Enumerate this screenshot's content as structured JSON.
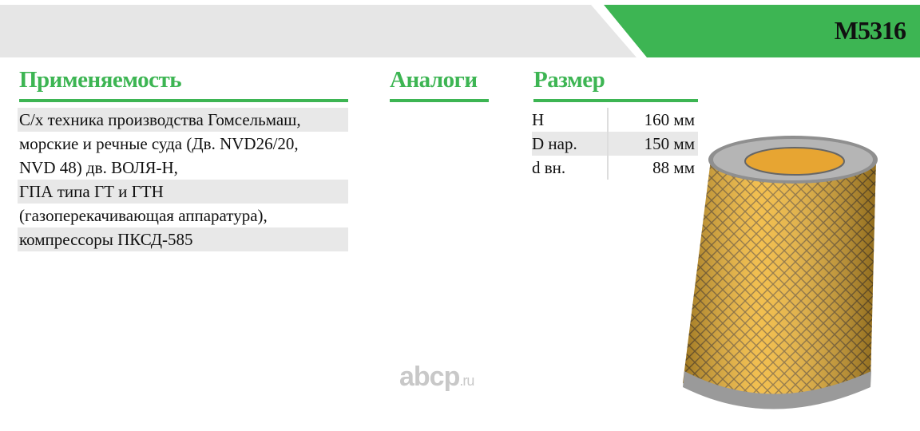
{
  "header": {
    "code": "M5316",
    "accent": "#3db553",
    "bar_gray": "#e6e6e6"
  },
  "sections": {
    "applicability": "Применяемость",
    "analogs": "Аналоги",
    "size": "Размер"
  },
  "applicability_lines": [
    "С/х техника производства  Гомсельмаш,",
    "морские и речные суда   (Дв. NVD26/20,",
    "NVD 48) дв. ВОЛЯ-Н,",
    "ГПА типа ГТ и ГТН",
    "(газоперекачивающая  аппаратура),",
    "компрессоры ПКСД-585"
  ],
  "dimensions": [
    {
      "label": "H",
      "value": "160 мм"
    },
    {
      "label": "D нар.",
      "value": "150 мм"
    },
    {
      "label": "d вн.",
      "value": "88 мм"
    }
  ],
  "watermark": {
    "main": "abcp",
    "suffix": ".ru"
  },
  "image": {
    "icon": "air-filter-cylinder-image"
  }
}
